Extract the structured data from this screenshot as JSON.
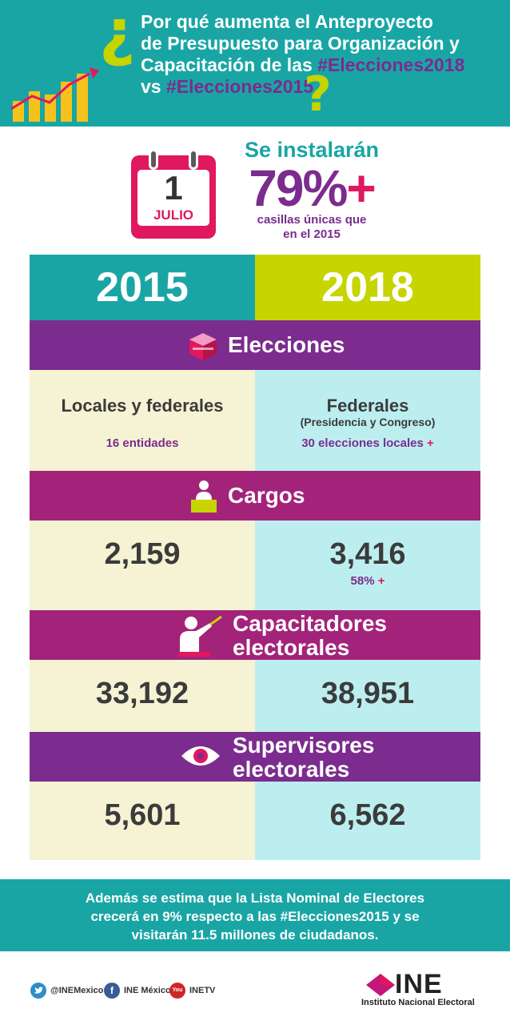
{
  "header": {
    "q_open": "¿",
    "q_close": "?",
    "title_line1": "Por qué aumenta el Anteproyecto",
    "title_line2": "de Presupuesto para Organización y",
    "title_line3a": "Capacitación de las ",
    "title_line3b": "#Elecciones2018",
    "title_line4a": "vs ",
    "title_line4b": "#Elecciones2015"
  },
  "calendar": {
    "day": "1",
    "month": "JULIO"
  },
  "stat": {
    "lead": "Se instalarán",
    "big": "79%",
    "plus": "+",
    "sub_line1": "casillas únicas que",
    "sub_line2": "en el 2015"
  },
  "years": {
    "left": "2015",
    "right": "2018"
  },
  "sections": {
    "elecciones": {
      "label": "Elecciones",
      "left_main": "Locales y federales",
      "left_sub": "16 entidades",
      "right_main": "Federales",
      "right_paren": "(Presidencia y Congreso)",
      "right_sub": "30 elecciones locales",
      "right_plus": "+"
    },
    "cargos": {
      "label": "Cargos",
      "left_value": "2,159",
      "right_value": "3,416",
      "right_pct": "58%",
      "right_plus": "+"
    },
    "capacitadores": {
      "label_line1": "Capacitadores",
      "label_line2": "electorales",
      "left_value": "33,192",
      "right_value": "38,951"
    },
    "supervisores": {
      "label_line1": "Supervisores",
      "label_line2": "electorales",
      "left_value": "5,601",
      "right_value": "6,562"
    }
  },
  "note": {
    "line1": "Además se estima que la Lista Nominal de Electores",
    "line2": "crecerá en 9% respecto a las #Elecciones2015 y se",
    "line3": "visitarán 11.5 millones de ciudadanos."
  },
  "social": {
    "twitter": "@INEMexico",
    "facebook": "INE México",
    "youtube": "INETV",
    "facebook_glyph": "f",
    "youtube_glyph": "You"
  },
  "logo": {
    "name": "INE",
    "caption": "Instituto Nacional Electoral"
  },
  "colors": {
    "teal": "#1aa5a5",
    "lime": "#c6d400",
    "purple": "#7b2c8e",
    "magenta": "#a3237a",
    "pink": "#e0185f",
    "cream": "#f5f3d3",
    "light_blue": "#bceef0"
  }
}
